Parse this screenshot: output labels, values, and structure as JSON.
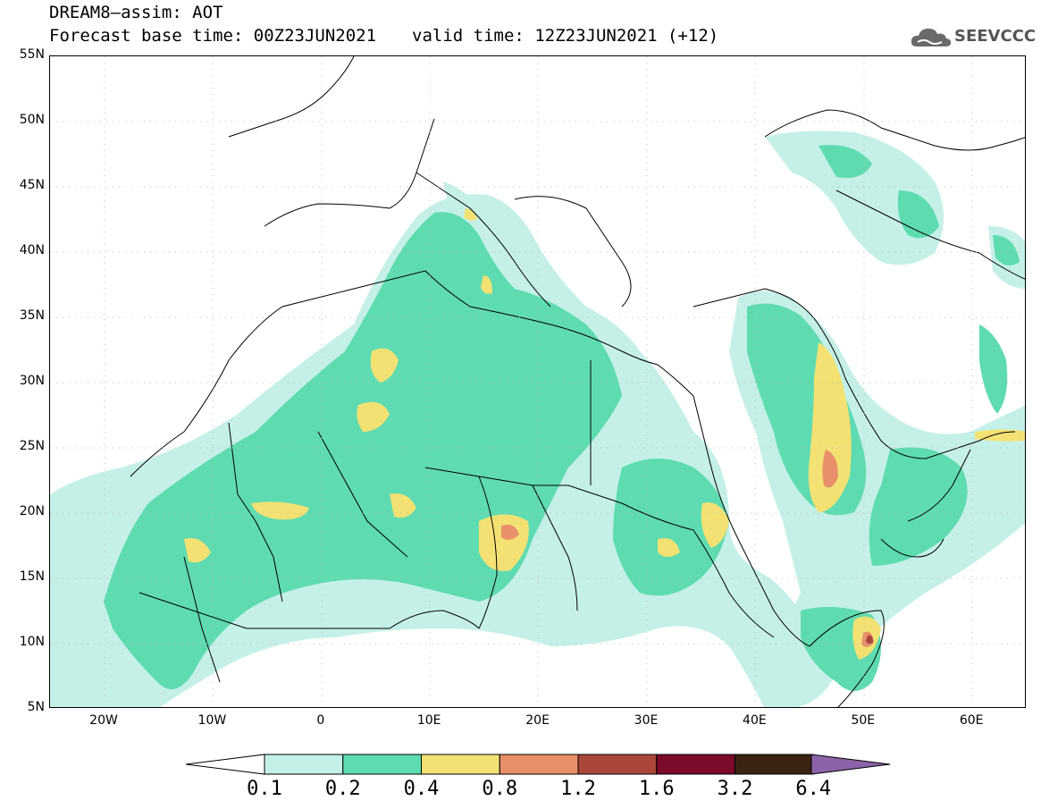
{
  "header": {
    "title": "DREAM8–assim: AOT",
    "base_time": "Forecast base time: 00Z23JUN2021",
    "valid_time": "valid time: 12Z23JUN2021 (+12)"
  },
  "logo": {
    "text": "SEEVCCC",
    "icon": "cloud-icon"
  },
  "map": {
    "lat_labels": [
      "55N",
      "50N",
      "45N",
      "40N",
      "35N",
      "30N",
      "25N",
      "20N",
      "15N",
      "10N",
      "5N"
    ],
    "lon_labels": [
      "20W",
      "10W",
      "0",
      "10E",
      "20E",
      "30E",
      "40E",
      "50E",
      "60E"
    ]
  },
  "legend": {
    "labels": [
      "0.1",
      "0.2",
      "0.4",
      "0.8",
      "1.2",
      "1.6",
      "3.2",
      "6.4"
    ],
    "colors": [
      "#ffffff",
      "#c4f0e8",
      "#5edbb1",
      "#f3e273",
      "#e8906a",
      "#a9473a",
      "#7c0a2a",
      "#3b2314",
      "#8c63a8"
    ]
  }
}
